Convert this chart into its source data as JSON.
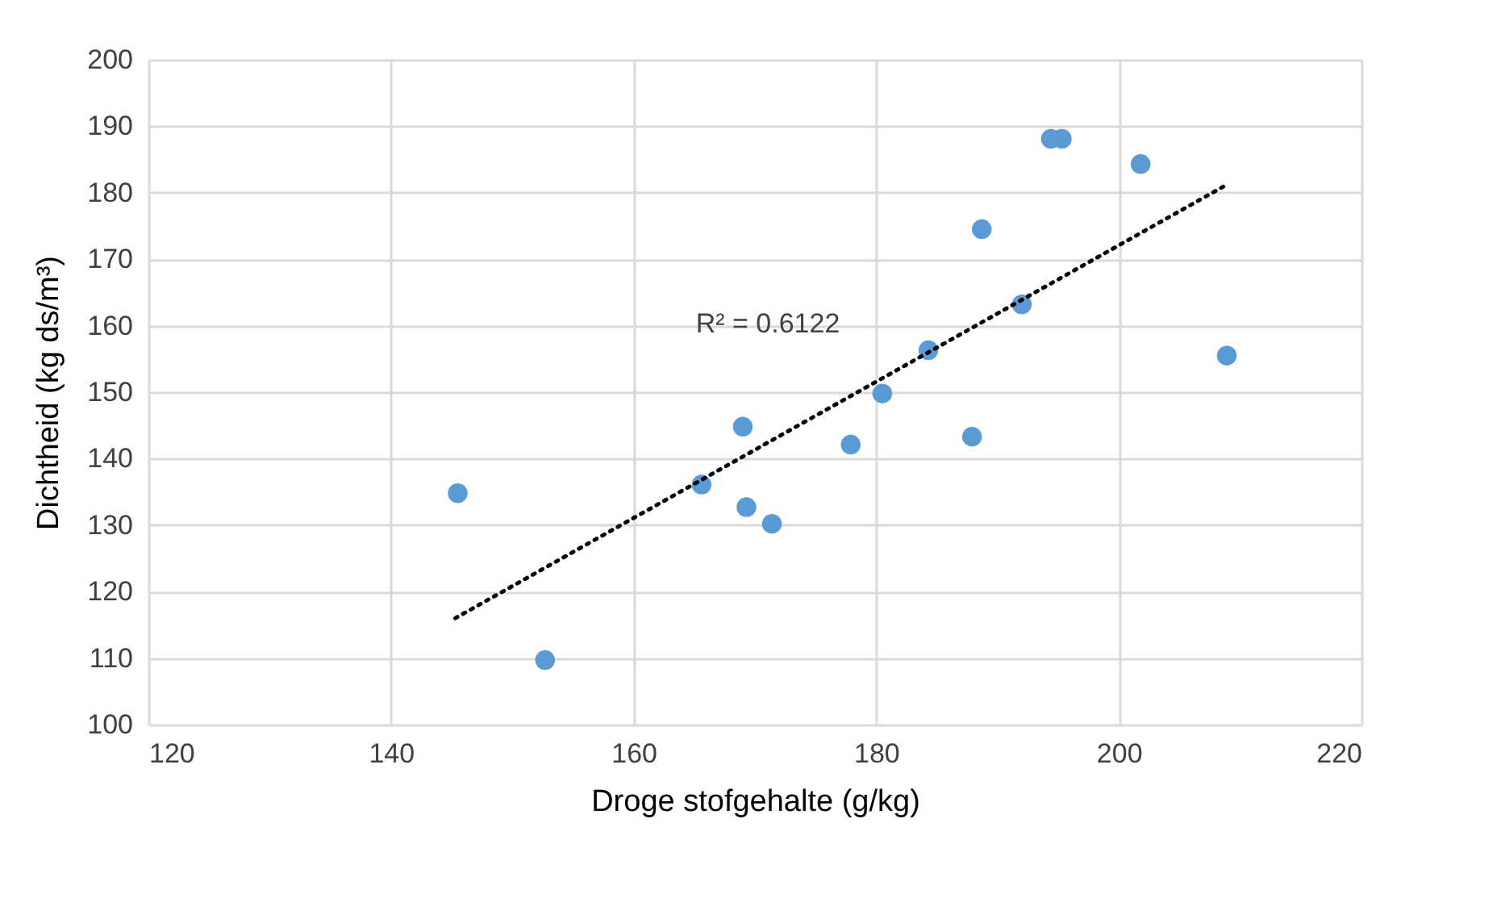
{
  "chart_data": {
    "type": "scatter",
    "xlabel": "Droge stofgehalte (g/kg)",
    "ylabel": "Dichtheid (kg ds/m³)",
    "xlim": [
      120,
      220
    ],
    "xticks": [
      120,
      140,
      160,
      180,
      200,
      220
    ],
    "ylim": [
      100,
      200
    ],
    "yticks": [
      100,
      110,
      120,
      130,
      140,
      150,
      160,
      170,
      180,
      190,
      200
    ],
    "grid": true,
    "annotations": [
      "R² = 0.6122"
    ],
    "series": [
      {
        "marker": "circle",
        "color": "#5b9bd5",
        "x": [
          145.5,
          152.7,
          165.6,
          169.0,
          169.3,
          171.4,
          177.9,
          180.5,
          184.3,
          187.9,
          188.7,
          192.0,
          194.4,
          195.3,
          201.8,
          208.9
        ],
        "values": [
          134.8,
          109.7,
          136.1,
          144.8,
          132.7,
          130.2,
          142.1,
          149.8,
          156.3,
          143.3,
          174.5,
          163.2,
          188.1,
          188.1,
          184.3,
          155.5
        ]
      },
      {
        "type": "line",
        "color": "#000000",
        "line_style": "dotted",
        "x": [
          145.3,
          208.7
        ],
        "values": [
          116,
          181
        ]
      }
    ]
  }
}
